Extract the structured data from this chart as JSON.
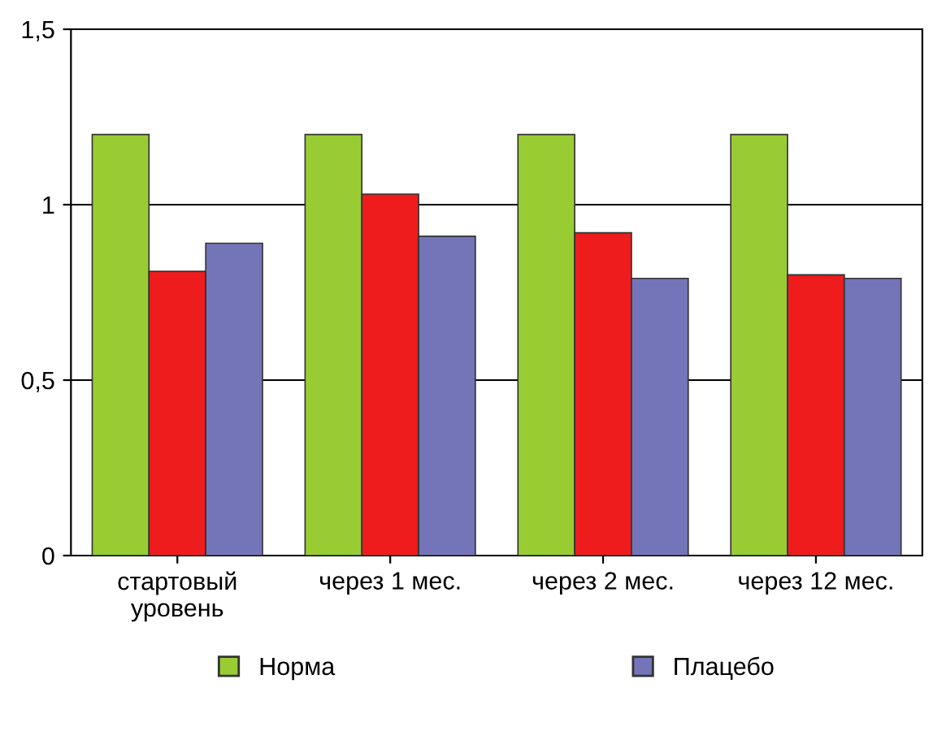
{
  "chart_data": {
    "type": "bar",
    "categories": [
      "стартовый\nуровень",
      "через 1 мес.",
      "через 2 мес.",
      "через 12 мес."
    ],
    "series": [
      {
        "name": "Норма",
        "color": "#99cc33",
        "values": [
          1.2,
          1.2,
          1.2,
          1.2
        ]
      },
      {
        "color": "#ee1c1c",
        "values": [
          0.81,
          1.03,
          0.92,
          0.8
        ]
      },
      {
        "name": "Плацебо",
        "color": "#7474b8",
        "values": [
          0.89,
          0.91,
          0.79,
          0.79
        ]
      }
    ],
    "ylim": [
      0,
      1.5
    ],
    "yticks": [
      0,
      {
        "value": 0.5,
        "label": "0,5"
      },
      1,
      {
        "value": 1.5,
        "label": "1,5"
      }
    ],
    "grid": "y",
    "legend": "bottom"
  }
}
